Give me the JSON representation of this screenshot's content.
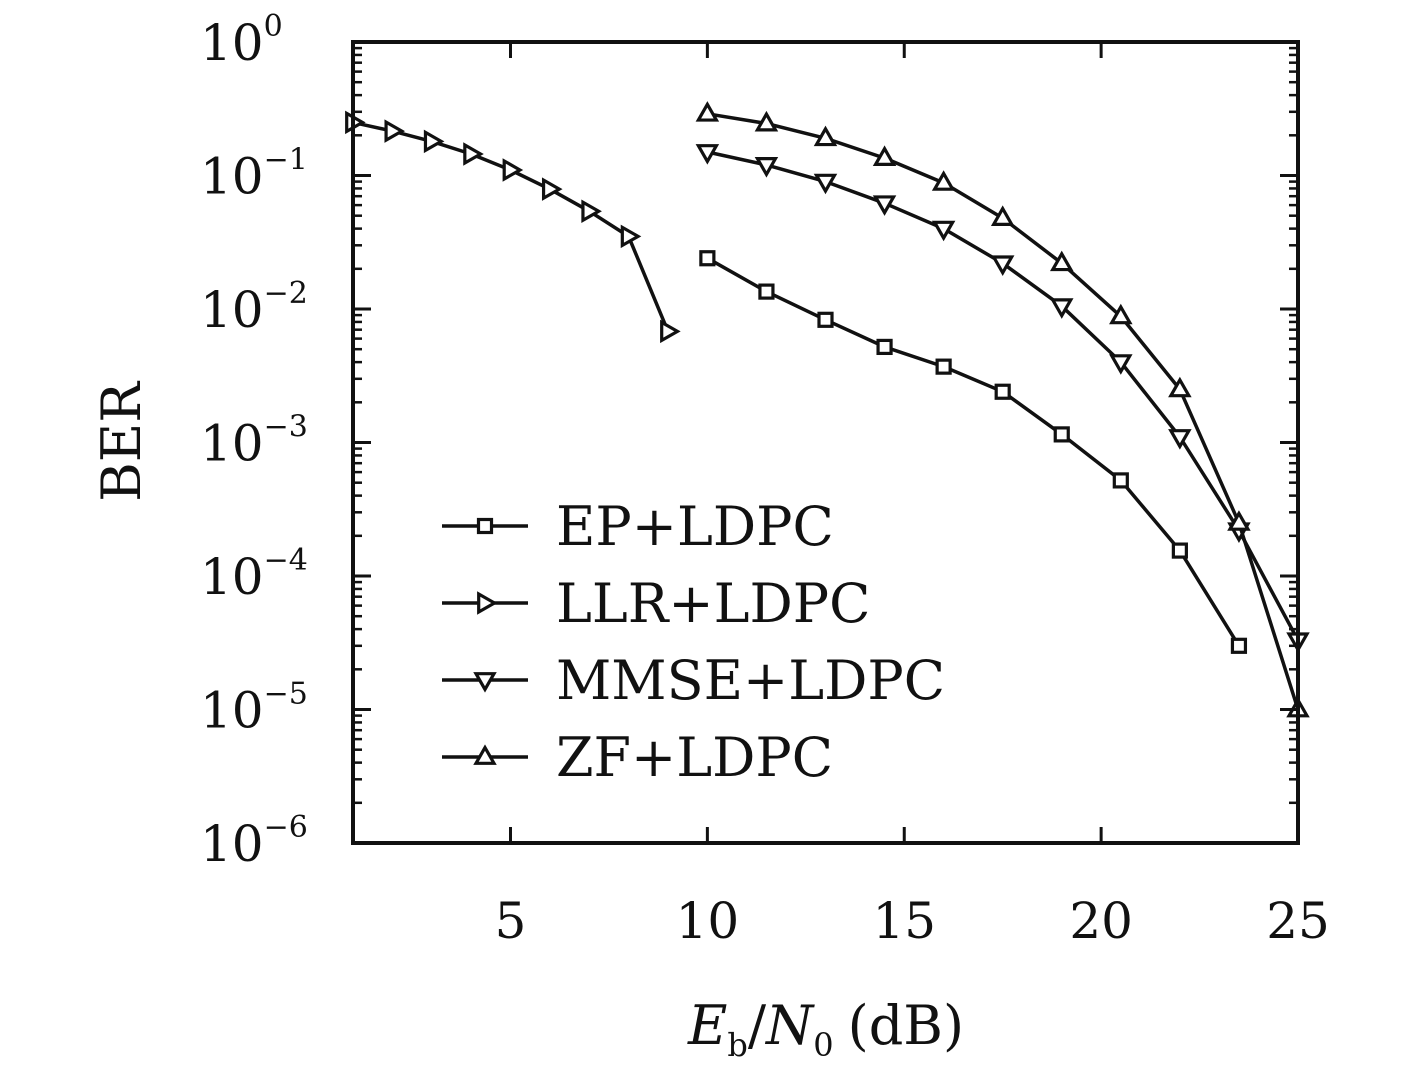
{
  "chart_data": {
    "type": "line",
    "title": "",
    "xlabel": {
      "main": "E",
      "main_sub": "b",
      "slash": "/",
      "second": "N",
      "second_sub": "0",
      "unit": "(dB)"
    },
    "ylabel": "BER",
    "xlim": [
      1,
      25
    ],
    "ylim": [
      1e-06,
      1
    ],
    "yscale": "log",
    "grid": false,
    "legend_position": "lower-left",
    "x_ticks": [
      {
        "value": 5,
        "label": "5"
      },
      {
        "value": 10,
        "label": "10"
      },
      {
        "value": 15,
        "label": "15"
      },
      {
        "value": 20,
        "label": "20"
      },
      {
        "value": 25,
        "label": "25"
      }
    ],
    "y_ticks": [
      {
        "exp": 0,
        "base": "10",
        "sup": "0"
      },
      {
        "exp": -1,
        "base": "10",
        "sup": "−1"
      },
      {
        "exp": -2,
        "base": "10",
        "sup": "−2"
      },
      {
        "exp": -3,
        "base": "10",
        "sup": "−3"
      },
      {
        "exp": -4,
        "base": "10",
        "sup": "−4"
      },
      {
        "exp": -5,
        "base": "10",
        "sup": "−5"
      },
      {
        "exp": -6,
        "base": "10",
        "sup": "−6"
      }
    ],
    "series": [
      {
        "name": "EP+LDPC",
        "marker": "square",
        "x": [
          10,
          11.5,
          13,
          14.5,
          16,
          17.5,
          19,
          20.5,
          22,
          23.5
        ],
        "y": [
          0.024,
          0.0135,
          0.0083,
          0.0052,
          0.0037,
          0.0024,
          0.00115,
          0.00052,
          0.000155,
          3e-05
        ]
      },
      {
        "name": "LLR+LDPC",
        "marker": "triangle-right",
        "x": [
          1,
          2,
          3,
          4,
          5,
          6,
          7,
          8,
          9
        ],
        "y": [
          0.25,
          0.215,
          0.18,
          0.145,
          0.11,
          0.079,
          0.054,
          0.035,
          0.0068
        ]
      },
      {
        "name": "MMSE+LDPC",
        "marker": "triangle-down",
        "x": [
          10,
          11.5,
          13,
          14.5,
          16,
          17.5,
          19,
          20.5,
          22,
          23.5,
          25
        ],
        "y": [
          0.15,
          0.12,
          0.09,
          0.062,
          0.04,
          0.022,
          0.0105,
          0.004,
          0.0011,
          0.00022,
          3.3e-05
        ]
      },
      {
        "name": "ZF+LDPC",
        "marker": "triangle-up",
        "x": [
          10,
          11.5,
          13,
          14.5,
          16,
          17.5,
          19,
          20.5,
          22,
          23.5,
          25
        ],
        "y": [
          0.29,
          0.245,
          0.19,
          0.135,
          0.088,
          0.048,
          0.022,
          0.0088,
          0.0025,
          0.00025,
          1e-05
        ]
      }
    ]
  }
}
